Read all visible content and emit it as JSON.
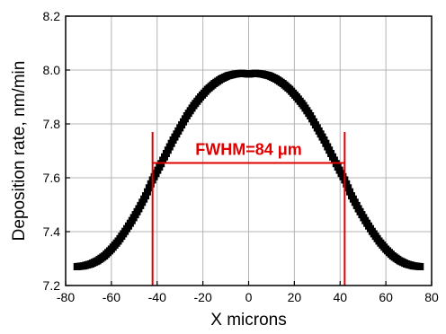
{
  "chart_data": {
    "type": "scatter",
    "xlabel": "X microns",
    "ylabel": "Deposition rate, nm/min",
    "xlim": [
      -80,
      80
    ],
    "ylim": [
      7.2,
      8.2
    ],
    "xticks": [
      -80,
      -60,
      -40,
      -20,
      0,
      20,
      40,
      60,
      80
    ],
    "yticks": [
      7.2,
      7.4,
      7.6,
      7.8,
      8.0,
      8.2
    ],
    "x_tick_labels": [
      "-80",
      "-60",
      "-40",
      "-20",
      "0",
      "20",
      "40",
      "60",
      "80"
    ],
    "y_tick_labels": [
      "7.2",
      "7.4",
      "7.6",
      "7.8",
      "8.0",
      "8.2"
    ],
    "grid": true,
    "series": [
      {
        "color": "#000000",
        "marker": "square",
        "x": [
          -75,
          -72,
          -69,
          -66,
          -63,
          -60,
          -57,
          -54,
          -51,
          -48,
          -45,
          -42,
          -39,
          -36,
          -33,
          -30,
          -27,
          -24,
          -21,
          -18,
          -15,
          -12,
          -9,
          -6,
          -3,
          0,
          3,
          6,
          9,
          12,
          15,
          18,
          21,
          24,
          27,
          30,
          33,
          36,
          39,
          42,
          45,
          48,
          51,
          54,
          57,
          60,
          63,
          66,
          69,
          72,
          75
        ],
        "y": [
          7.27,
          7.273,
          7.28,
          7.292,
          7.31,
          7.335,
          7.365,
          7.401,
          7.441,
          7.485,
          7.533,
          7.592,
          7.64,
          7.69,
          7.74,
          7.785,
          7.83,
          7.868,
          7.9,
          7.928,
          7.95,
          7.967,
          7.979,
          7.985,
          7.988,
          7.985,
          7.988,
          7.985,
          7.979,
          7.967,
          7.95,
          7.928,
          7.9,
          7.868,
          7.83,
          7.785,
          7.74,
          7.69,
          7.64,
          7.592,
          7.533,
          7.485,
          7.441,
          7.401,
          7.365,
          7.335,
          7.31,
          7.292,
          7.28,
          7.273,
          7.27
        ]
      }
    ],
    "annotation": {
      "text": "FWHM=84 μm",
      "color": "#e00000",
      "x_left": -42,
      "x_right": 42,
      "y_bar": 7.655,
      "y_line_top": 7.77,
      "y_line_bottom": 7.2
    }
  }
}
